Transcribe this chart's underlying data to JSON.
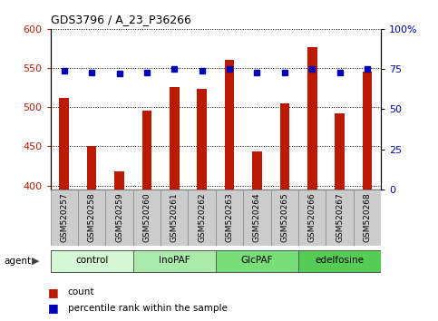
{
  "title": "GDS3796 / A_23_P36266",
  "samples": [
    "GSM520257",
    "GSM520258",
    "GSM520259",
    "GSM520260",
    "GSM520261",
    "GSM520262",
    "GSM520263",
    "GSM520264",
    "GSM520265",
    "GSM520266",
    "GSM520267",
    "GSM520268"
  ],
  "counts": [
    512,
    451,
    418,
    496,
    526,
    523,
    560,
    444,
    505,
    577,
    492,
    545
  ],
  "percentiles": [
    74,
    73,
    72,
    73,
    75,
    74,
    75,
    73,
    73,
    75,
    73,
    75
  ],
  "groups": [
    {
      "label": "control",
      "start": 0,
      "end": 3
    },
    {
      "label": "InoPAF",
      "start": 3,
      "end": 6
    },
    {
      "label": "GlcPAF",
      "start": 6,
      "end": 9
    },
    {
      "label": "edelfosine",
      "start": 9,
      "end": 12
    }
  ],
  "group_colors": [
    "#d4f7d4",
    "#aaeaaa",
    "#77dd77",
    "#55cc55"
  ],
  "ylim_left": [
    395,
    600
  ],
  "ylim_right": [
    0,
    100
  ],
  "yticks_left": [
    400,
    450,
    500,
    550,
    600
  ],
  "yticks_right": [
    0,
    25,
    50,
    75,
    100
  ],
  "ytick_right_labels": [
    "0",
    "25",
    "50",
    "75",
    "100%"
  ],
  "bar_color": "#bb1a00",
  "dot_color": "#0000bb",
  "bar_width": 0.35,
  "dot_size": 5
}
